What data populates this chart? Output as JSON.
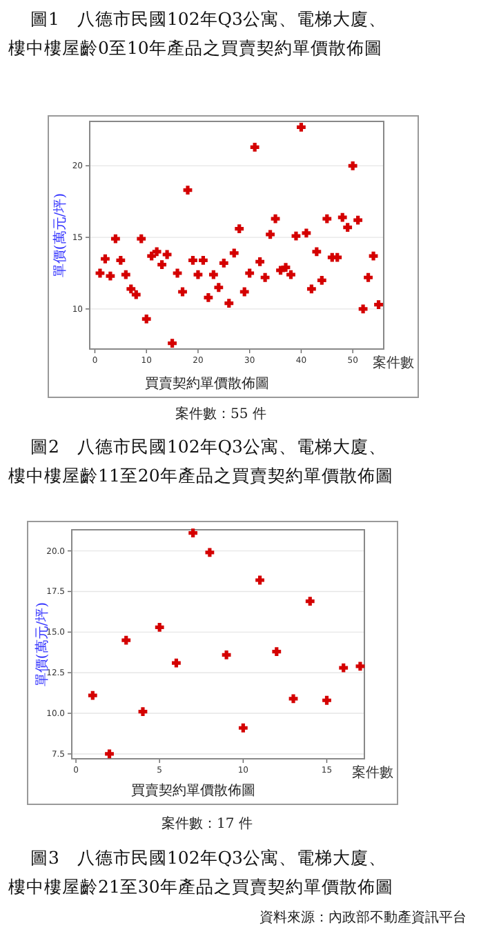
{
  "chart_data": [
    {
      "type": "scatter",
      "title": "圖1　八德市民國102年Q3公寓、電梯大廈、樓中樓屋齡0至10年產品之買賣契約單價散佈圖",
      "xlabel": "案件數",
      "ylabel": "單價(萬元/坪)",
      "annotations": [
        "買賣契約單價散佈圖",
        "案件數：55 件"
      ],
      "xlim": [
        -1,
        56
      ],
      "ylim": [
        7.2,
        23.1
      ],
      "xticks": [
        0,
        10,
        20,
        30,
        40,
        50
      ],
      "yticks": [
        10,
        15,
        20
      ],
      "grid": "y",
      "marker": "cross",
      "series": [
        {
          "color": "#d40000",
          "x": [
            1,
            2,
            3,
            4,
            5,
            6,
            7,
            8,
            9,
            10,
            11,
            12,
            13,
            14,
            15,
            16,
            17,
            18,
            19,
            20,
            21,
            22,
            23,
            24,
            25,
            26,
            27,
            28,
            29,
            30,
            31,
            32,
            33,
            34,
            35,
            36,
            37,
            38,
            39,
            40,
            41,
            42,
            43,
            44,
            45,
            46,
            47,
            48,
            49,
            50,
            51,
            52,
            53,
            54,
            55
          ],
          "values": [
            12.5,
            13.5,
            12.3,
            14.9,
            13.4,
            12.4,
            11.4,
            11.0,
            14.9,
            9.3,
            13.7,
            14.0,
            13.1,
            13.8,
            7.6,
            12.5,
            11.2,
            18.3,
            13.4,
            12.4,
            13.4,
            10.8,
            12.4,
            11.5,
            13.2,
            10.4,
            13.9,
            15.6,
            11.2,
            12.5,
            21.3,
            13.3,
            12.2,
            15.2,
            16.3,
            12.7,
            12.9,
            12.4,
            15.1,
            22.7,
            15.3,
            11.4,
            14.0,
            12.0,
            16.3,
            13.6,
            13.6,
            16.4,
            15.7,
            20.0,
            16.2,
            10.0,
            12.2,
            13.7,
            10.3
          ]
        }
      ]
    },
    {
      "type": "scatter",
      "title": "圖2　八德市民國102年Q3公寓、電梯大廈、樓中樓屋齡11至20年產品之買賣契約單價散佈圖",
      "xlabel": "案件數",
      "ylabel": "單價(萬元/坪)",
      "annotations": [
        "買賣契約單價散佈圖",
        "案件數：17 件"
      ],
      "xlim": [
        -0.25,
        17.25
      ],
      "ylim": [
        7.2,
        21.3
      ],
      "xticks": [
        0,
        5,
        10,
        15
      ],
      "yticks": [
        7.5,
        {
          "value": 10,
          "label": "10.0"
        },
        12.5,
        {
          "value": 15,
          "label": "15.0"
        },
        17.5,
        {
          "value": 20,
          "label": "20.0"
        }
      ],
      "grid": "y",
      "marker": "cross",
      "series": [
        {
          "color": "#d40000",
          "x": [
            1,
            2,
            3,
            4,
            5,
            6,
            7,
            8,
            9,
            10,
            11,
            12,
            13,
            14,
            15,
            16,
            17
          ],
          "values": [
            11.1,
            7.5,
            14.5,
            10.1,
            15.3,
            13.1,
            21.1,
            19.9,
            13.6,
            9.1,
            18.2,
            13.8,
            10.9,
            16.9,
            10.8,
            12.8,
            12.9
          ]
        }
      ]
    },
    {
      "type": "other",
      "title": "圖3　八德市民國102年Q3公寓、電梯大廈、樓中樓屋齡21至30年產品之買賣契約單價散佈圖",
      "annotations": [
        "資料來源：內政部不動產資訊平台"
      ]
    }
  ]
}
